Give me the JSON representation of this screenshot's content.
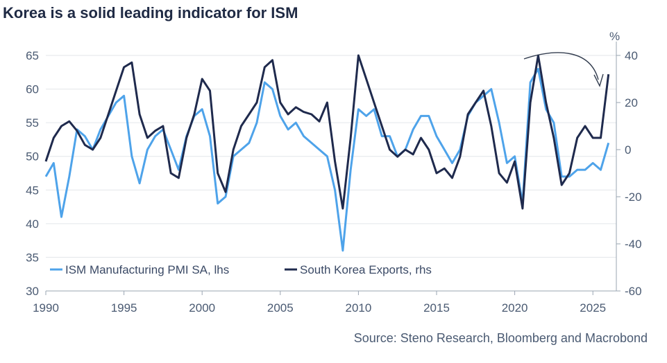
{
  "chart_data": {
    "type": "line",
    "title": "Korea is a solid leading indicator for ISM",
    "source": "Source: Steno Research, Bloomberg and Macrobond",
    "right_unit": "%",
    "x_ticks": [
      "1990",
      "1995",
      "2000",
      "2005",
      "2010",
      "2015",
      "2020",
      "2025"
    ],
    "x_tick_values": [
      1990,
      1995,
      2000,
      2005,
      2010,
      2015,
      2020,
      2025
    ],
    "left_ticks": [
      30,
      35,
      40,
      45,
      50,
      55,
      60,
      65
    ],
    "right_ticks": [
      -60,
      -40,
      -20,
      0,
      20,
      40
    ],
    "xlim": [
      1990,
      2026.5
    ],
    "ylim_left": [
      30,
      65
    ],
    "ylim_right": [
      -60,
      40
    ],
    "grid": true,
    "legend_position": "bottom-left",
    "series": [
      {
        "name": "ISM Manufacturing PMI SA, lhs",
        "axis": "left",
        "color": "#4ea3ea",
        "x": [
          1990,
          1990.5,
          1991,
          1991.5,
          1992,
          1992.5,
          1993,
          1993.5,
          1994,
          1994.5,
          1995,
          1995.5,
          1996,
          1996.5,
          1997,
          1997.5,
          1998,
          1998.5,
          1999,
          1999.5,
          2000,
          2000.5,
          2001,
          2001.5,
          2002,
          2002.5,
          2003,
          2003.5,
          2004,
          2004.5,
          2005,
          2005.5,
          2006,
          2006.5,
          2007,
          2007.5,
          2008,
          2008.5,
          2009,
          2009.5,
          2010,
          2010.5,
          2011,
          2011.5,
          2012,
          2012.5,
          2013,
          2013.5,
          2014,
          2014.5,
          2015,
          2015.5,
          2016,
          2016.5,
          2017,
          2017.5,
          2018,
          2018.5,
          2019,
          2019.5,
          2020,
          2020.5,
          2021,
          2021.5,
          2022,
          2022.5,
          2023,
          2023.5,
          2024,
          2024.5,
          2025,
          2025.5,
          2026
        ],
        "values": [
          47,
          49,
          41,
          47,
          54,
          53,
          51,
          54,
          56,
          58,
          59,
          50,
          46,
          51,
          53,
          54,
          51,
          48,
          53,
          56,
          57,
          53,
          43,
          44,
          50,
          51,
          52,
          55,
          61,
          60,
          56,
          54,
          55,
          53,
          52,
          51,
          50,
          45,
          36,
          48,
          57,
          56,
          57,
          53,
          53,
          50,
          51,
          54,
          56,
          56,
          53,
          51,
          49,
          51,
          56,
          58,
          59,
          60,
          55,
          49,
          50,
          43,
          61,
          63,
          57,
          55,
          47,
          47,
          48,
          48,
          49,
          48,
          52
        ]
      },
      {
        "name": "South Korea Exports, rhs",
        "axis": "right",
        "color": "#1f2a4d",
        "x": [
          1990,
          1990.5,
          1991,
          1991.5,
          1992,
          1992.5,
          1993,
          1993.5,
          1994,
          1994.5,
          1995,
          1995.5,
          1996,
          1996.5,
          1997,
          1997.5,
          1998,
          1998.5,
          1999,
          1999.5,
          2000,
          2000.5,
          2001,
          2001.5,
          2002,
          2002.5,
          2003,
          2003.5,
          2004,
          2004.5,
          2005,
          2005.5,
          2006,
          2006.5,
          2007,
          2007.5,
          2008,
          2008.5,
          2009,
          2009.5,
          2010,
          2010.5,
          2011,
          2011.5,
          2012,
          2012.5,
          2013,
          2013.5,
          2014,
          2014.5,
          2015,
          2015.5,
          2016,
          2016.5,
          2017,
          2017.5,
          2018,
          2018.5,
          2019,
          2019.5,
          2020,
          2020.5,
          2021,
          2021.5,
          2022,
          2022.5,
          2023,
          2023.5,
          2024,
          2024.5,
          2025,
          2025.5,
          2026
        ],
        "values": [
          -5,
          5,
          10,
          12,
          8,
          2,
          0,
          5,
          15,
          25,
          35,
          37,
          15,
          5,
          8,
          10,
          -10,
          -12,
          5,
          15,
          30,
          25,
          -10,
          -18,
          0,
          10,
          15,
          20,
          35,
          38,
          20,
          15,
          18,
          16,
          15,
          12,
          20,
          -5,
          -25,
          5,
          40,
          30,
          20,
          10,
          0,
          -3,
          0,
          -2,
          5,
          0,
          -10,
          -8,
          -12,
          -3,
          15,
          20,
          25,
          10,
          -10,
          -14,
          -5,
          -25,
          20,
          40,
          20,
          5,
          -15,
          -10,
          5,
          10,
          5,
          5,
          32
        ]
      }
    ]
  }
}
